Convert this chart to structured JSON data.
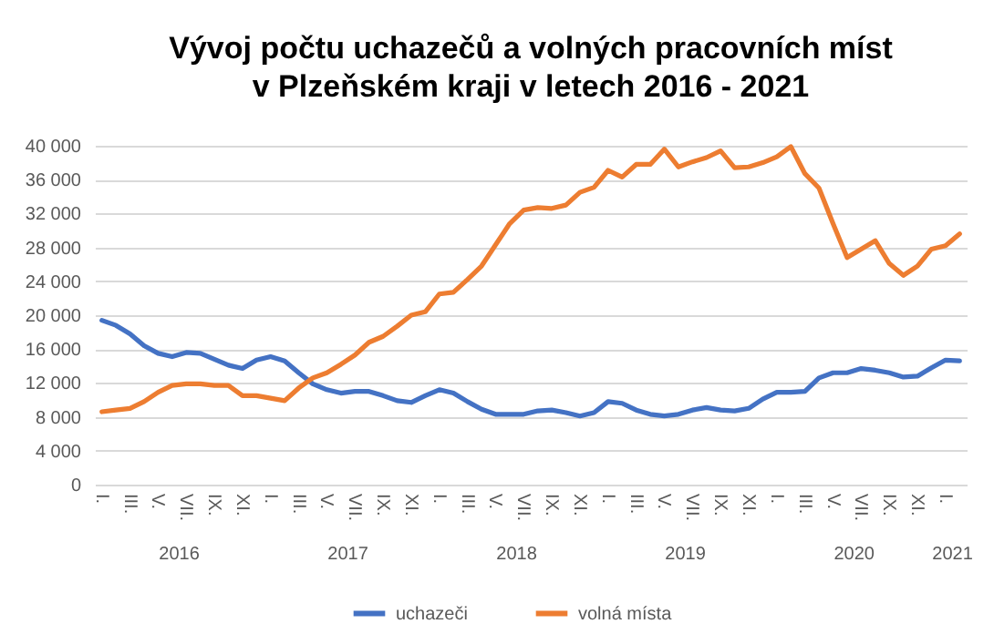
{
  "chart_data": {
    "type": "line",
    "title": "Vývoj počtu uchazečů a volných pracovních míst\nv Plzeňském kraji v letech 2016 - 2021",
    "categories": [
      "I.",
      null,
      "III.",
      null,
      "V.",
      null,
      "VII.",
      null,
      "IX.",
      null,
      "XI.",
      null,
      "I.",
      null,
      "III.",
      null,
      "V.",
      null,
      "VII.",
      null,
      "IX.",
      null,
      "XI.",
      null,
      "I.",
      null,
      "III.",
      null,
      "V.",
      null,
      "VII.",
      null,
      "IX.",
      null,
      "XI.",
      null,
      "I.",
      null,
      "III.",
      null,
      "V.",
      null,
      "VII.",
      null,
      "IX.",
      null,
      "XI.",
      null,
      "I.",
      null,
      "III.",
      null,
      "V.",
      null,
      "VII.",
      null,
      "IX.",
      null,
      "XI.",
      null,
      "I.",
      null
    ],
    "annotations": [
      "2016",
      "2017",
      "2018",
      "2019",
      "2020",
      "2021"
    ],
    "series": [
      {
        "name": "uchazeči",
        "color": "#4472c4",
        "values": [
          19400,
          18800,
          17800,
          16400,
          15500,
          15100,
          15600,
          15500,
          14800,
          14100,
          13700,
          14700,
          15100,
          14600,
          13200,
          11900,
          11200,
          10800,
          11000,
          11000,
          10500,
          9900,
          9700,
          10500,
          11200,
          10800,
          9800,
          8900,
          8300,
          8300,
          8300,
          8700,
          8800,
          8500,
          8100,
          8500,
          9800,
          9600,
          8800,
          8300,
          8100,
          8300,
          8800,
          9100,
          8800,
          8700,
          9000,
          10100,
          10900,
          10900,
          11000,
          12600,
          13200,
          13200,
          13700,
          13500,
          13200,
          12700,
          12800,
          13800,
          14700,
          14600
        ]
      },
      {
        "name": "volná místa",
        "color": "#ed7d31",
        "values": [
          8600,
          8800,
          9000,
          9800,
          10900,
          11700,
          11900,
          11900,
          11700,
          11700,
          10500,
          10500,
          10200,
          9900,
          11400,
          12600,
          13200,
          14200,
          15300,
          16800,
          17500,
          18700,
          20000,
          20400,
          22500,
          22700,
          24200,
          25800,
          28300,
          30800,
          32400,
          32700,
          32600,
          33000,
          34500,
          35100,
          37100,
          36300,
          37800,
          37800,
          39600,
          37500,
          38100,
          38600,
          39400,
          37400,
          37500,
          38000,
          38700,
          39900,
          36700,
          35000,
          30800,
          26800,
          27800,
          28800,
          26100,
          24700,
          25800,
          27800,
          28200,
          29600
        ]
      }
    ],
    "ylim": [
      0,
      40000
    ],
    "yticks": [
      0,
      {
        "value": 4000,
        "label": "4 000"
      },
      {
        "value": 8000,
        "label": "8 000"
      },
      {
        "value": 12000,
        "label": "12 000"
      },
      {
        "value": 16000,
        "label": "16 000"
      },
      {
        "value": 20000,
        "label": "20 000"
      },
      {
        "value": 24000,
        "label": "24 000"
      },
      {
        "value": 28000,
        "label": "28 000"
      },
      {
        "value": 32000,
        "label": "32 000"
      },
      {
        "value": 36000,
        "label": "36 000"
      },
      {
        "value": 40000,
        "label": "40 000"
      }
    ],
    "grid": "y",
    "legend": "bottom",
    "line_style": "solid",
    "marker": "none"
  }
}
